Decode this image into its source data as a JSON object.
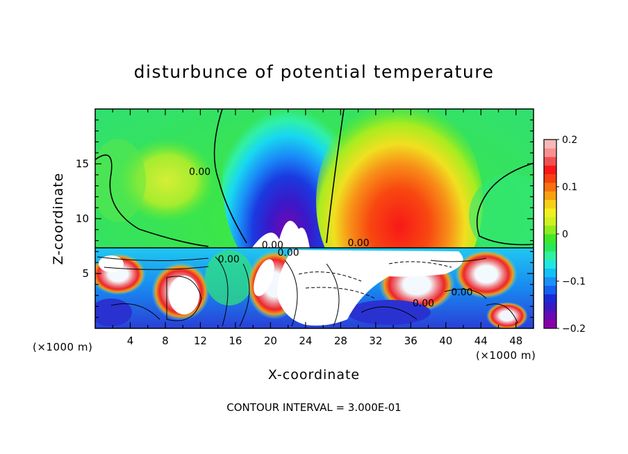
{
  "chart_data": {
    "type": "heatmap",
    "title": "disturbunce of potential temperature",
    "xlabel": "X-coordinate",
    "ylabel": "Z-coordinate",
    "x_unit": "(×1000 m)",
    "z_unit": "(×1000 m)",
    "xlim": [
      0,
      50
    ],
    "ylim": [
      0,
      20
    ],
    "x_ticks": [
      "4",
      "8",
      "12",
      "16",
      "20",
      "24",
      "28",
      "32",
      "36",
      "40",
      "44",
      "48"
    ],
    "y_ticks": [
      "5",
      "10",
      "15"
    ],
    "colorbar": {
      "range": [
        -0.2,
        0.2
      ],
      "tick_labels": [
        "0.2",
        "0.1",
        "0",
        "−0.1",
        "−0.2"
      ],
      "colors": [
        "#8a00a8",
        "#6a0ab0",
        "#3a1ac0",
        "#1a2ad8",
        "#1460f0",
        "#1a90f8",
        "#14c0f8",
        "#20e8e0",
        "#30f0a0",
        "#28e858",
        "#40e828",
        "#90ec20",
        "#d0f020",
        "#f0f020",
        "#f8d018",
        "#f8a010",
        "#f87010",
        "#f84010",
        "#f81818",
        "#f05050",
        "#f89090",
        "#f8b8b8"
      ]
    },
    "contour_labels": [
      "0.00",
      "0.00",
      "0.00",
      "0.00",
      "0.00",
      "0.00",
      "0.00"
    ],
    "footer": "CONTOUR INTERVAL = 3.000E-01"
  }
}
